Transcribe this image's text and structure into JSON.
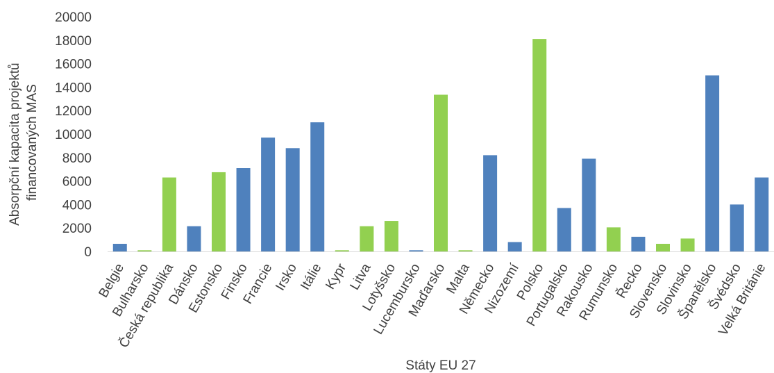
{
  "chart_data": {
    "type": "bar",
    "title": "",
    "xlabel": "Státy EU 27",
    "ylabel_lines": [
      "Absorpční kapacita projektů",
      "financovaných MAS"
    ],
    "ylim": [
      0,
      20000
    ],
    "yticks": [
      0,
      2000,
      4000,
      6000,
      8000,
      10000,
      12000,
      14000,
      16000,
      18000,
      20000
    ],
    "grid": false,
    "legend": "none",
    "colors": {
      "blue": "#4f81bd",
      "green": "#92d050"
    },
    "categories": [
      "Belgie",
      "Bulharsko",
      "Česká republika",
      "Dánsko",
      "Estonsko",
      "Finsko",
      "Francie",
      "Irsko",
      "Itálie",
      "Kypr",
      "Litva",
      "Lotyšsko",
      "Lucembursko",
      "Maďarsko",
      "Malta",
      "Německo",
      "Nizozemí",
      "Polsko",
      "Portugalsko",
      "Rakousko",
      "Rumunsko",
      "Řecko",
      "Slovensko",
      "Slovinsko",
      "Španělsko",
      "Švédsko",
      "Velká Británie"
    ],
    "values": [
      650,
      100,
      6300,
      2150,
      6750,
      7100,
      9700,
      8800,
      11000,
      100,
      2150,
      2600,
      100,
      13350,
      100,
      8200,
      800,
      18100,
      3700,
      7900,
      2050,
      1250,
      650,
      1100,
      15000,
      4000,
      6300
    ],
    "bar_colors": [
      "blue",
      "green",
      "green",
      "blue",
      "green",
      "blue",
      "blue",
      "blue",
      "blue",
      "green",
      "green",
      "green",
      "blue",
      "green",
      "green",
      "blue",
      "blue",
      "green",
      "blue",
      "blue",
      "green",
      "blue",
      "green",
      "green",
      "blue",
      "blue",
      "blue"
    ]
  }
}
